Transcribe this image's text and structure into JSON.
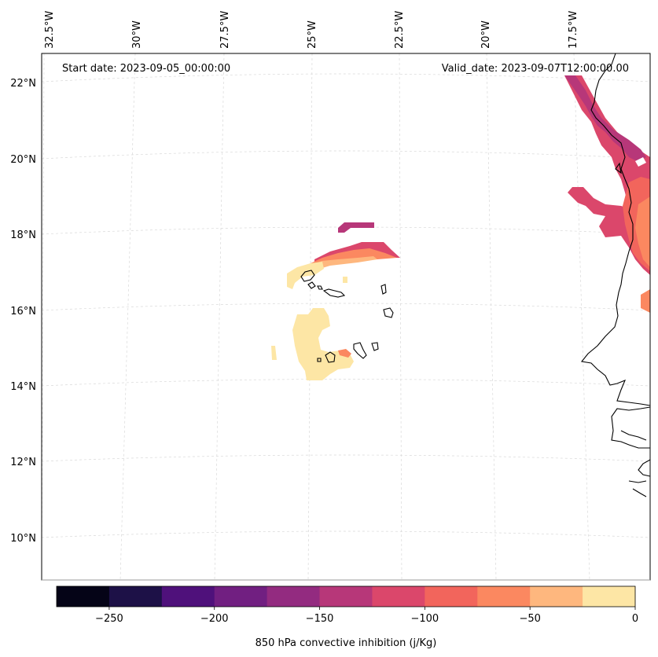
{
  "map": {
    "start_date": "Start date: 2023-09-05_00:00:00",
    "valid_date": "Valid_date: 2023-09-07T12:00:00.00",
    "lon_labels": [
      "32.5°W",
      "30°W",
      "27.5°W",
      "25°W",
      "22.5°W",
      "20°W",
      "17.5°W"
    ],
    "lat_labels": [
      "22°N",
      "20°N",
      "18°N",
      "16°N",
      "14°N",
      "12°N",
      "10°N"
    ],
    "features": [
      "Cape Verde islands",
      "West African coastline"
    ]
  },
  "colorbar": {
    "label": "850 hPa convective inhibition (j/Kg)",
    "range": [
      -275,
      0
    ],
    "ticks": [
      "−250",
      "−200",
      "−150",
      "−100",
      "−50",
      "0"
    ],
    "tick_values": [
      -250,
      -200,
      -150,
      -100,
      -50,
      0
    ],
    "levels": [
      -275,
      -250,
      -225,
      -200,
      -175,
      -150,
      -125,
      -100,
      -75,
      -50,
      -25,
      0
    ],
    "colors": [
      "#050417",
      "#1d1147",
      "#4f117b",
      "#711f81",
      "#932b80",
      "#b73779",
      "#db476b",
      "#f2655c",
      "#fb8860",
      "#feb77e",
      "#fde6a5"
    ]
  }
}
